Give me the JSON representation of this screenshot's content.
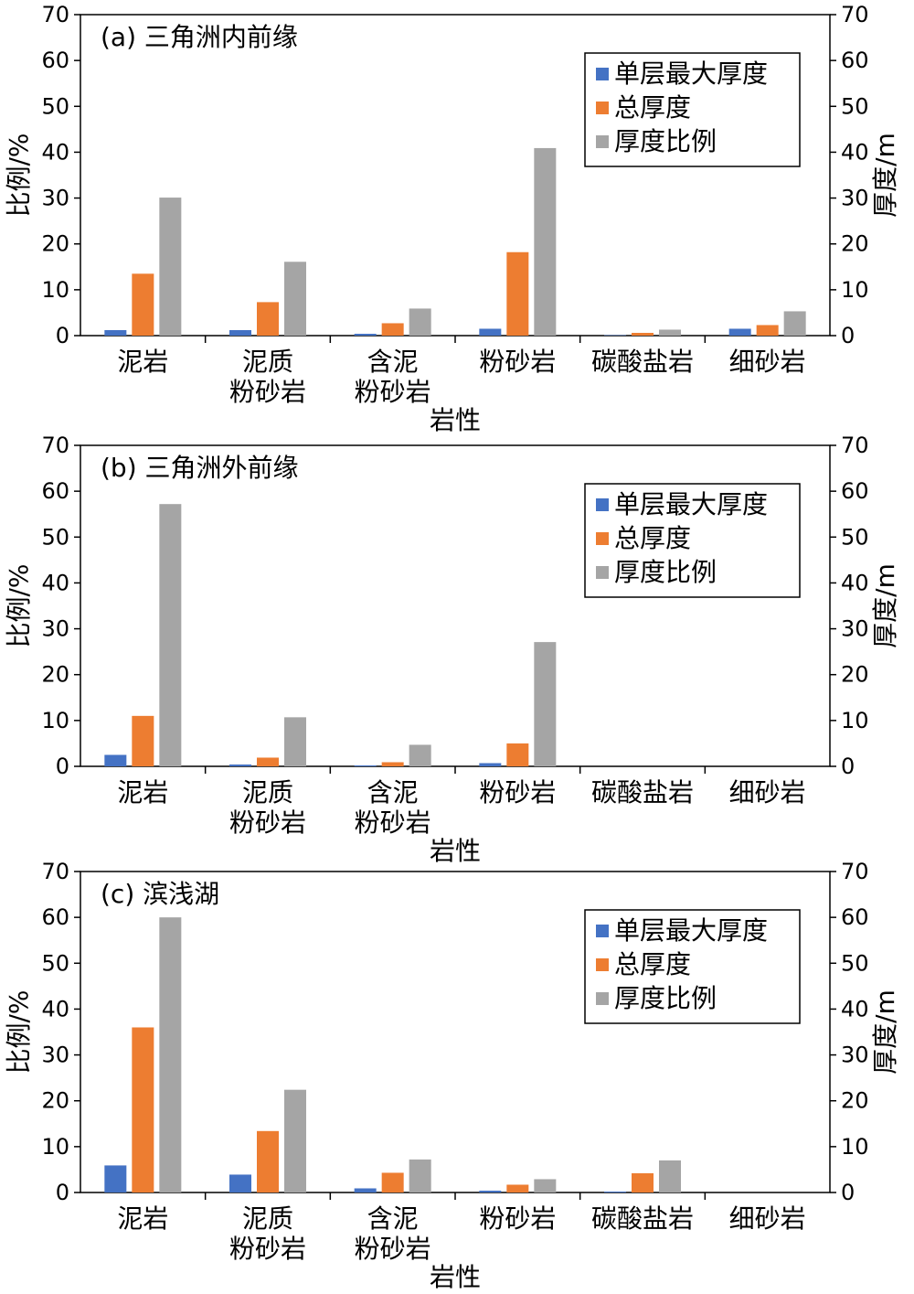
{
  "chart_data": [
    {
      "type": "bar",
      "title": "(a) 三角洲内前缘",
      "categories": [
        [
          "泥岩"
        ],
        [
          "泥质",
          "粉砂岩"
        ],
        [
          "含泥",
          "粉砂岩"
        ],
        [
          "粉砂岩"
        ],
        [
          "碳酸盐岩"
        ],
        [
          "细砂岩"
        ]
      ],
      "xlabel": "岩性",
      "ylabel": "比例/%",
      "y2label": "厚度/m",
      "ylim": [
        0,
        70
      ],
      "y2lim": [
        0,
        70
      ],
      "yticks": [
        0,
        10,
        20,
        30,
        40,
        50,
        60,
        70
      ],
      "legend": "top-right",
      "series": [
        {
          "name": "单层最大厚度",
          "color": "#4472c4",
          "values": [
            1.2,
            1.2,
            0.4,
            1.5,
            0.1,
            1.5
          ]
        },
        {
          "name": "总厚度",
          "color": "#ed7d31",
          "values": [
            13.5,
            7.3,
            2.7,
            18.2,
            0.6,
            2.3
          ]
        },
        {
          "name": "厚度比例",
          "color": "#a5a5a5",
          "values": [
            30.1,
            16.1,
            5.9,
            40.9,
            1.3,
            5.3
          ]
        }
      ]
    },
    {
      "type": "bar",
      "title": "(b) 三角洲外前缘",
      "categories": [
        [
          "泥岩"
        ],
        [
          "泥质",
          "粉砂岩"
        ],
        [
          "含泥",
          "粉砂岩"
        ],
        [
          "粉砂岩"
        ],
        [
          "碳酸盐岩"
        ],
        [
          "细砂岩"
        ]
      ],
      "xlabel": "岩性",
      "ylabel": "比例/%",
      "y2label": "厚度/m",
      "ylim": [
        0,
        70
      ],
      "y2lim": [
        0,
        70
      ],
      "yticks": [
        0,
        10,
        20,
        30,
        40,
        50,
        60,
        70
      ],
      "legend": "top-right",
      "series": [
        {
          "name": "单层最大厚度",
          "color": "#4472c4",
          "values": [
            2.5,
            0.4,
            0.2,
            0.7,
            0,
            0
          ]
        },
        {
          "name": "总厚度",
          "color": "#ed7d31",
          "values": [
            11.0,
            1.9,
            0.9,
            5.0,
            0,
            0
          ]
        },
        {
          "name": "厚度比例",
          "color": "#a5a5a5",
          "values": [
            57.2,
            10.7,
            4.7,
            27.1,
            0,
            0
          ]
        }
      ]
    },
    {
      "type": "bar",
      "title": "(c) 滨浅湖",
      "categories": [
        [
          "泥岩"
        ],
        [
          "泥质",
          "粉砂岩"
        ],
        [
          "含泥",
          "粉砂岩"
        ],
        [
          "粉砂岩"
        ],
        [
          "碳酸盐岩"
        ],
        [
          "细砂岩"
        ]
      ],
      "xlabel": "岩性",
      "ylabel": "比例/%",
      "y2label": "厚度/m",
      "ylim": [
        0,
        70
      ],
      "y2lim": [
        0,
        70
      ],
      "yticks": [
        0,
        10,
        20,
        30,
        40,
        50,
        60,
        70
      ],
      "legend": "top-right",
      "series": [
        {
          "name": "单层最大厚度",
          "color": "#4472c4",
          "values": [
            5.9,
            3.9,
            0.9,
            0.4,
            0.2,
            0
          ]
        },
        {
          "name": "总厚度",
          "color": "#ed7d31",
          "values": [
            36.0,
            13.4,
            4.3,
            1.7,
            4.2,
            0
          ]
        },
        {
          "name": "厚度比例",
          "color": "#a5a5a5",
          "values": [
            60.0,
            22.4,
            7.2,
            2.9,
            7.0,
            0
          ]
        }
      ]
    }
  ]
}
